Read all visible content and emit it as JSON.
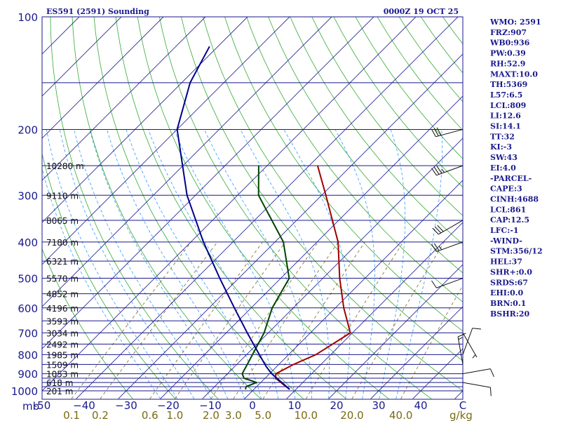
{
  "chart_data": {
    "type": "skewt",
    "title_left": "ES591 (2591) Sounding",
    "title_right": "0000Z 19 OCT 25",
    "pressure_axis": {
      "unit_label": "mb",
      "tick_labels": [
        {
          "p": 100,
          "label": "100"
        },
        {
          "p": 200,
          "label": "200"
        },
        {
          "p": 300,
          "label": "300"
        },
        {
          "p": 400,
          "label": "400"
        },
        {
          "p": 500,
          "label": "500"
        },
        {
          "p": 600,
          "label": "600"
        },
        {
          "p": 700,
          "label": "700"
        },
        {
          "p": 800,
          "label": "800"
        },
        {
          "p": 900,
          "label": "900"
        },
        {
          "p": 1000,
          "label": "1000"
        }
      ]
    },
    "isobars": [
      100,
      150,
      200,
      250,
      300,
      350,
      400,
      450,
      500,
      550,
      600,
      650,
      700,
      750,
      800,
      850,
      900,
      925,
      950,
      975,
      1000
    ],
    "temperature_axis": {
      "unit": "C",
      "ticks": [
        {
          "t": -50,
          "label": "-50"
        },
        {
          "t": -40,
          "label": "−40"
        },
        {
          "t": -30,
          "label": "−30"
        },
        {
          "t": -20,
          "label": "−20"
        },
        {
          "t": -10,
          "label": "−10"
        },
        {
          "t": 0,
          "label": "0"
        },
        {
          "t": 10,
          "label": "10"
        },
        {
          "t": 20,
          "label": "20"
        },
        {
          "t": 30,
          "label": "30"
        },
        {
          "t": 40,
          "label": "40"
        },
        {
          "t": 50,
          "label": "C"
        }
      ]
    },
    "mixing_ratio_axis": {
      "unit": "g/kg",
      "labels": [
        "0.1",
        "0.2",
        "0.6",
        "1.0",
        "2.0",
        "3.0",
        "5.0",
        "10.0",
        "20.0",
        "40.0"
      ],
      "values": [
        0.1,
        0.2,
        0.6,
        1.0,
        2.0,
        3.0,
        5.0,
        10.0,
        20.0,
        40.0
      ]
    },
    "height_labels": [
      {
        "p": 250,
        "label": "10280 m"
      },
      {
        "p": 300,
        "label": "9110 m"
      },
      {
        "p": 350,
        "label": "8065 m"
      },
      {
        "p": 400,
        "label": "7180 m"
      },
      {
        "p": 450,
        "label": "6321 m"
      },
      {
        "p": 500,
        "label": "5570 m"
      },
      {
        "p": 550,
        "label": "4852 m"
      },
      {
        "p": 600,
        "label": "4196 m"
      },
      {
        "p": 650,
        "label": "3593 m"
      },
      {
        "p": 700,
        "label": "3034 m"
      },
      {
        "p": 750,
        "label": "2492 m"
      },
      {
        "p": 800,
        "label": "1985 m"
      },
      {
        "p": 850,
        "label": "1509 m"
      },
      {
        "p": 900,
        "label": "1053 m"
      },
      {
        "p": 950,
        "label": "618 m"
      },
      {
        "p": 1000,
        "label": "201 m"
      }
    ],
    "series": [
      {
        "name": "temperature",
        "color": "#a00000",
        "points": [
          [
            991,
            8.5
          ],
          [
            975,
            7
          ],
          [
            925,
            2.5
          ],
          [
            900,
            1.5
          ],
          [
            850,
            3.5
          ],
          [
            800,
            6.5
          ],
          [
            700,
            9.5
          ],
          [
            600,
            2
          ],
          [
            500,
            -6
          ],
          [
            400,
            -15
          ],
          [
            300,
            -29
          ],
          [
            250,
            -38
          ]
        ]
      },
      {
        "name": "dewpoint",
        "color": "#004400",
        "points": [
          [
            991,
            -2
          ],
          [
            975,
            -2.5
          ],
          [
            950,
            -1
          ],
          [
            925,
            -5
          ],
          [
            900,
            -6.5
          ],
          [
            850,
            -7.5
          ],
          [
            700,
            -11
          ],
          [
            600,
            -15
          ],
          [
            500,
            -18
          ],
          [
            400,
            -28
          ],
          [
            300,
            -45
          ],
          [
            250,
            -52
          ]
        ]
      },
      {
        "name": "parcel",
        "color": "#00008c",
        "points": [
          [
            991,
            8.5
          ],
          [
            950,
            5
          ],
          [
            900,
            0.5
          ],
          [
            861,
            -2.5
          ],
          [
            800,
            -7
          ],
          [
            700,
            -15
          ],
          [
            600,
            -24
          ],
          [
            500,
            -34.5
          ],
          [
            400,
            -47
          ],
          [
            300,
            -62
          ],
          [
            200,
            -80
          ],
          [
            150,
            -88
          ],
          [
            120,
            -92
          ]
        ]
      }
    ],
    "wind_barbs": [
      {
        "p": 950,
        "direction_deg": 100,
        "speed_kt": 10
      },
      {
        "p": 900,
        "direction_deg": 80,
        "speed_kt": 10
      },
      {
        "p": 850,
        "direction_deg": 350,
        "speed_kt": 15
      },
      {
        "p": 800,
        "direction_deg": 20,
        "speed_kt": 10
      },
      {
        "p": 700,
        "direction_deg": 150,
        "speed_kt": 5
      },
      {
        "p": 500,
        "direction_deg": 250,
        "speed_kt": 10
      },
      {
        "p": 400,
        "direction_deg": 250,
        "speed_kt": 25
      },
      {
        "p": 350,
        "direction_deg": 240,
        "speed_kt": 30
      },
      {
        "p": 250,
        "direction_deg": 250,
        "speed_kt": 35
      },
      {
        "p": 200,
        "direction_deg": 255,
        "speed_kt": 30
      }
    ]
  },
  "indices": [
    "WMO: 2591",
    "FRZ:907",
    "WB0:936",
    "PW:0.39",
    "RH:52.9",
    "MAXT:10.0",
    "TH:5369",
    "L57:6.5",
    "LCL:809",
    "LI:12.6",
    "SI:14.1",
    "TT:32",
    "KI:-3",
    "SW:43",
    "EI:4.0",
    "-PARCEL-",
    "CAPE:3",
    "CINH:4688",
    "LCL:861",
    "CAP:12.5",
    "LFC:-1",
    "-WIND-",
    "STM:356/12",
    "HEL:37",
    "SHR+:0.0",
    "SRDS:67",
    "EHI:0.0",
    "BRN:0.1",
    "BSHR:20"
  ],
  "colors": {
    "frame": "#1a1a8c",
    "isobar": "#1a1a8c",
    "isotherm": "#2a2a9a",
    "dry_adiabat": "#33aa33",
    "moist_adiabat": "#3399ff",
    "mixing_ratio": "#7a6a14",
    "barb": "#111111"
  }
}
